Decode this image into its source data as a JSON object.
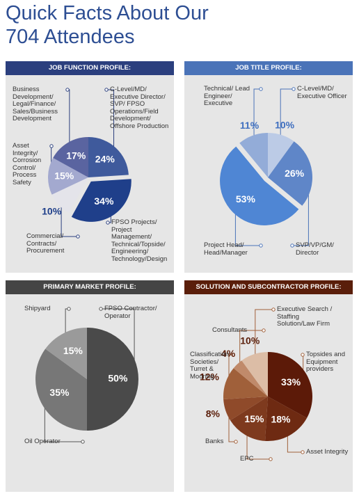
{
  "title": "Quick Facts About Our 704 Attendees",
  "chart_data": [
    {
      "type": "pie",
      "title": "JOB FUNCTION PROFILE:",
      "categories": [
        "C-Level/MD/ Executive Director/ SVP/ FPSO Operations/Field Development/ Offshore Production",
        "FPSO Projects/ Project Management/ Technical/Topside/ Engineering/ Technology/Design",
        "Commercial/ Contracts/ Procurement",
        "Asset Integrity/ Corrosion Control/ Process Safety",
        "Business Development/ Legal/Finance/ Sales/Business Development"
      ],
      "values": [
        24,
        34,
        10,
        15,
        17
      ],
      "value_labels": [
        "24%",
        "34%",
        "10%",
        "15%",
        "17%"
      ],
      "colors": [
        "#3f5a9c",
        "#1f3f8a",
        "#e4e4ea",
        "#a3a9cf",
        "#5a64a0"
      ]
    },
    {
      "type": "pie",
      "title": "JOB TITLE PROFILE:",
      "categories": [
        "C-Level/MD/ Executive Officer",
        "SVP/VP/GM/ Director",
        "Project Head/ Head/Manager",
        "Technical/ Lead Engineer/ Executive"
      ],
      "values": [
        10,
        26,
        53,
        11
      ],
      "value_labels": [
        "10%",
        "26%",
        "53%",
        "11%"
      ],
      "colors": [
        "#bccbe6",
        "#5f86c8",
        "#4f86d4",
        "#93acd8"
      ]
    },
    {
      "type": "pie",
      "title": "PRIMARY MARKET PROFILE:",
      "categories": [
        "FPSO Contractor/ Operator",
        "Oil Operator",
        "Shipyard"
      ],
      "values": [
        50,
        35,
        15
      ],
      "value_labels": [
        "50%",
        "35%",
        "15%"
      ],
      "colors": [
        "#4a4a4a",
        "#777777",
        "#9a9a9a"
      ]
    },
    {
      "type": "pie",
      "title": "SOLUTION AND SUBCONTRACTOR PROFILE:",
      "categories": [
        "Topsides and Equipment providers",
        "Asset Integrity",
        "EPC",
        "Banks",
        "Classification Societies/ Turret & Mooring",
        "Consultants",
        "Executive Search / Staffing Solution/Law Firm"
      ],
      "values": [
        33,
        18,
        15,
        8,
        12,
        4,
        10
      ],
      "value_labels": [
        "33%",
        "18%",
        "15%",
        "8%",
        "12%",
        "4%",
        "10%"
      ],
      "colors": [
        "#5c1a08",
        "#6e2a12",
        "#7e3a1e",
        "#8f4a2a",
        "#a0603a",
        "#c08a6a",
        "#dcbda6"
      ]
    }
  ]
}
